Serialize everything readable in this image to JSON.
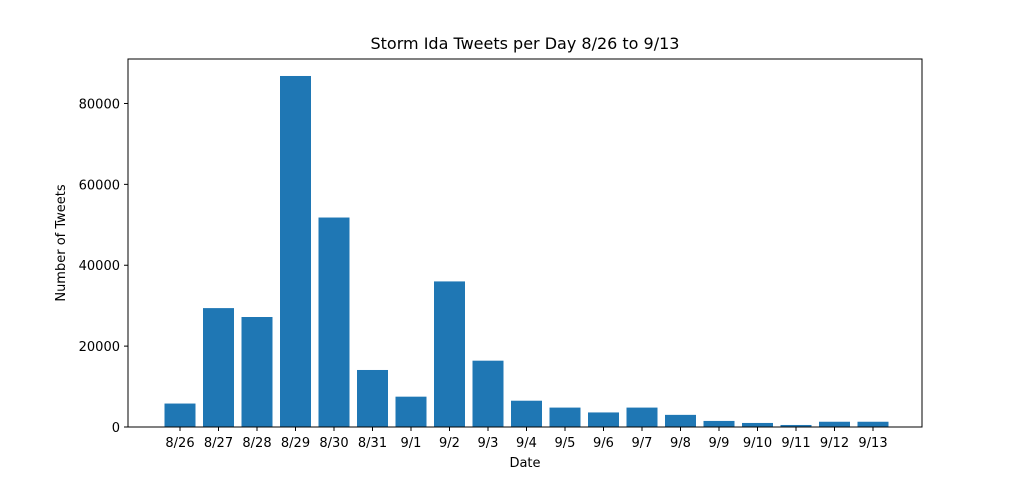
{
  "chart_data": {
    "type": "bar",
    "title": "Storm Ida Tweets per Day 8/26 to 9/13",
    "xlabel": "Date",
    "ylabel": "Number of Tweets",
    "categories": [
      "8/26",
      "8/27",
      "8/28",
      "8/29",
      "8/30",
      "8/31",
      "9/1",
      "9/2",
      "9/3",
      "9/4",
      "9/5",
      "9/6",
      "9/7",
      "9/8",
      "9/9",
      "9/10",
      "9/11",
      "9/12",
      "9/13"
    ],
    "values": [
      5800,
      29400,
      27200,
      86800,
      51800,
      14100,
      7500,
      36000,
      16400,
      6500,
      4800,
      3600,
      4800,
      3000,
      1500,
      1000,
      500,
      1300,
      1300
    ],
    "ylim": [
      0,
      91000
    ],
    "yticks": [
      0,
      20000,
      40000,
      60000,
      80000
    ],
    "grid": false,
    "bar_color": "#1f77b4"
  }
}
